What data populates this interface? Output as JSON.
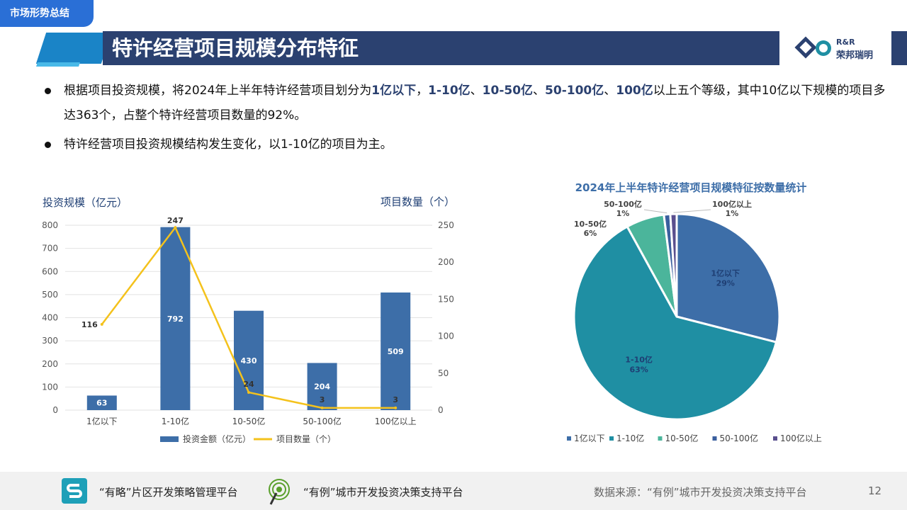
{
  "header": {
    "section_tab": "市场形势总结",
    "title": "特许经营项目规模分布特征",
    "logo_en": "R&R",
    "logo_cn": "荣邦瑞明"
  },
  "bullets": [
    {
      "segments": [
        {
          "text": "根据项目投资规模，将2024年上半年特许经营项目划分为",
          "em": false
        },
        {
          "text": "1亿以下",
          "em": true
        },
        {
          "text": "，",
          "em": false
        },
        {
          "text": "1-10亿",
          "em": true
        },
        {
          "text": "、",
          "em": false
        },
        {
          "text": "10-50亿",
          "em": true
        },
        {
          "text": "、",
          "em": false
        },
        {
          "text": "50-100亿",
          "em": true
        },
        {
          "text": "、",
          "em": false
        },
        {
          "text": "100亿",
          "em": true
        },
        {
          "text": "以上五个等级，其中10亿以下规模的项目多达363个，占整个特许经营项目数量的92%。",
          "em": false
        }
      ]
    },
    {
      "segments": [
        {
          "text": "特许经营项目投资规模结构发生变化，以1-10亿的项目为主。",
          "em": false
        }
      ]
    }
  ],
  "chart_data": [
    {
      "type": "bar",
      "title": "",
      "categories": [
        "1亿以下",
        "1-10亿",
        "10-50亿",
        "50-100亿",
        "100亿以上"
      ],
      "series": [
        {
          "name": "投资金额（亿元）",
          "type": "bar",
          "axis": "left",
          "values": [
            63,
            792,
            430,
            204,
            509
          ],
          "color": "#3d6ea8"
        },
        {
          "name": "项目数量（个）",
          "type": "line",
          "axis": "right",
          "values": [
            116,
            247,
            24,
            3,
            3
          ],
          "color": "#f4c21c"
        }
      ],
      "ylabel_left": "投资规模（亿元）",
      "ylabel_right": "项目数量（个）",
      "ylim_left": [
        0,
        800
      ],
      "yticks_left": [
        0,
        100,
        200,
        300,
        400,
        500,
        600,
        700,
        800
      ],
      "ylim_right": [
        0,
        250
      ],
      "yticks_right": [
        0,
        50,
        100,
        150,
        200,
        250
      ],
      "grid": true,
      "legend": "bottom"
    },
    {
      "type": "pie",
      "title": "2024年上半年特许经营项目规模特征按数量统计",
      "categories": [
        "1亿以下",
        "1-10亿",
        "10-50亿",
        "50-100亿",
        "100亿以上"
      ],
      "values": [
        29,
        63,
        6,
        1,
        1
      ],
      "labels": [
        "29%",
        "63%",
        "6%",
        "1%",
        "1%"
      ],
      "colors": [
        "#3d6ea8",
        "#1f8fa3",
        "#4bb59b",
        "#3a5f9e",
        "#5a4f8e"
      ],
      "legend": "bottom"
    }
  ],
  "footer": {
    "platform1": "“有略”片区开发策略管理平台",
    "platform2": "“有例”城市开发投资决策支持平台",
    "source": "数据来源：“有例”城市开发投资决策支持平台",
    "page_number": "12"
  }
}
